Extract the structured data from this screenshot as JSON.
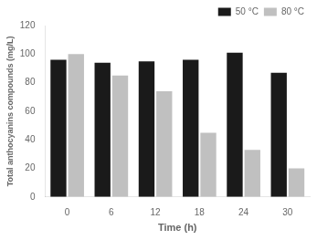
{
  "chart_data": {
    "type": "bar",
    "categories": [
      "0",
      "6",
      "12",
      "18",
      "24",
      "30"
    ],
    "series": [
      {
        "name": "50 °C",
        "color": "#1a1a1a",
        "values": [
          96,
          94,
          95,
          96,
          101,
          87
        ]
      },
      {
        "name": "80 °C",
        "color": "#c0c0c0",
        "values": [
          100,
          85,
          74,
          45,
          33,
          20
        ]
      }
    ],
    "xlabel": "Time (h)",
    "ylabel": "Total anthocyanins compounds (mg/L)",
    "ylim": [
      0,
      120
    ],
    "yticks": [
      0,
      20,
      40,
      60,
      80,
      100,
      120
    ],
    "grid": false,
    "legend": "upper right"
  }
}
